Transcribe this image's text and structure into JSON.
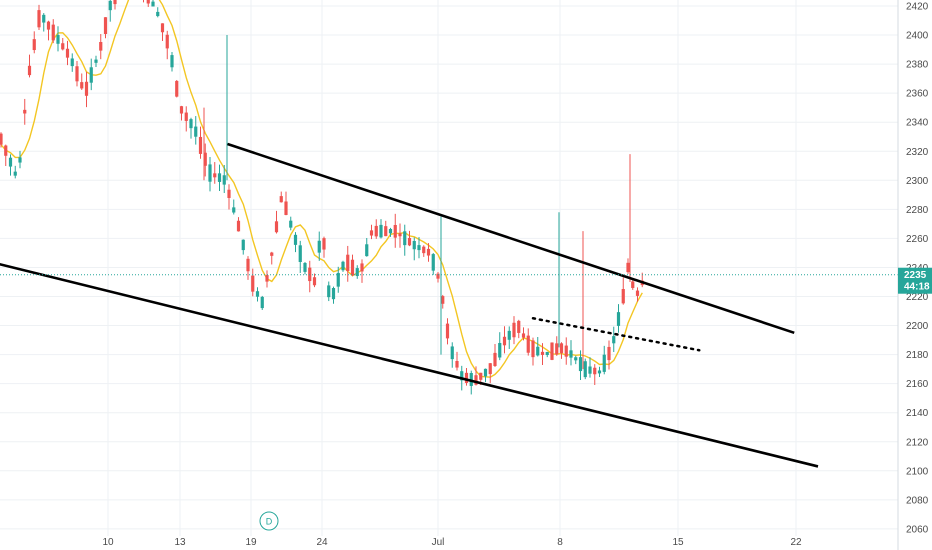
{
  "chart_data": {
    "type": "candlestick",
    "interval": "D",
    "y_axis": {
      "range": [
        2055,
        2425
      ],
      "ticks": [
        2060,
        2080,
        2100,
        2120,
        2140,
        2160,
        2180,
        2200,
        2220,
        2240,
        2260,
        2280,
        2300,
        2320,
        2340,
        2360,
        2380,
        2400,
        2420
      ]
    },
    "x_axis": {
      "tick_labels": [
        "10",
        "13",
        "19",
        "24",
        "Jul",
        "8",
        "15",
        "22"
      ]
    },
    "last_price": 2235,
    "countdown": "44:18",
    "colors": {
      "up": "#26a69a",
      "down": "#ef5350",
      "moving_average": "#f3c623",
      "trendline": "#000000",
      "grid": "#eef1f4",
      "badge": "#26a69a",
      "price_line": "#26a69a"
    },
    "trendlines": [
      {
        "from": [
          "Jun 15",
          2325
        ],
        "to": [
          "Jul 16",
          2195
        ],
        "style": "solid"
      },
      {
        "from": [
          "Jun 1",
          2260
        ],
        "to": [
          "Jul 17",
          2103
        ],
        "style": "solid"
      },
      {
        "from": [
          "Jul 5",
          2205
        ],
        "to": [
          "Jul 12",
          2183
        ],
        "style": "dotted"
      }
    ]
  },
  "ui": {
    "interval_label": "D"
  }
}
